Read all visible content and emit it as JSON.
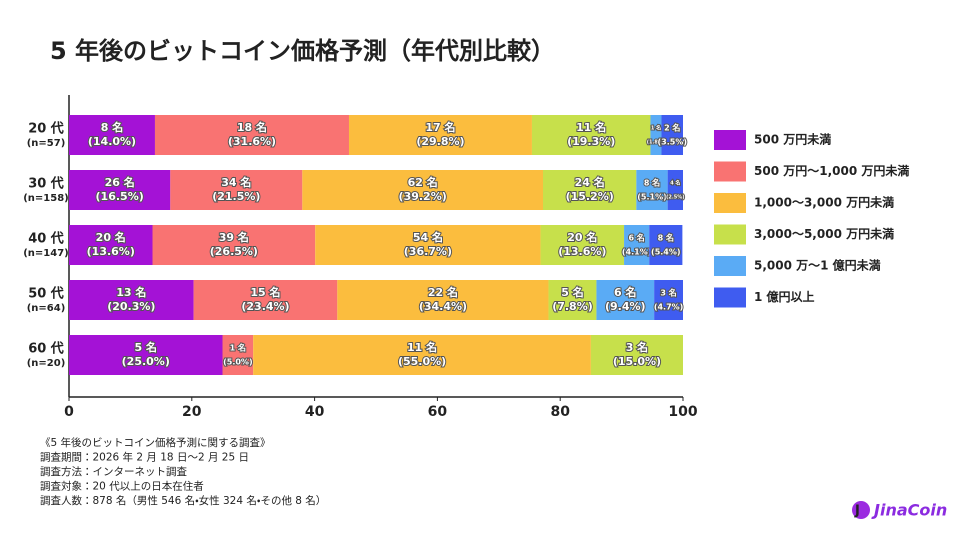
{
  "chart_data": {
    "type": "stacked-bar-horizontal",
    "title": "5 年後のビットコイン価格予測（年代別比較）",
    "categories": [
      "20 代",
      "30 代",
      "40 代",
      "50 代",
      "60 代"
    ],
    "category_notes": [
      "(n=57)",
      "(n=158)",
      "(n=147)",
      "(n=64)",
      "(n=20)"
    ],
    "xlim": [
      0,
      100
    ],
    "xticks": [
      0,
      20,
      40,
      60,
      80,
      100
    ],
    "legend": "right",
    "series": [
      {
        "name": "500 万円未満",
        "color": "#a412d6",
        "values": [
          14.0,
          16.5,
          13.6,
          20.3,
          25.0
        ],
        "value_labels": [
          "(14.0%)",
          "(16.5%)",
          "(13.6%)",
          "(20.3%)",
          "(25.0%)"
        ],
        "count_labels": [
          "8 名",
          "26 名",
          "20 名",
          "13 名",
          "5 名"
        ]
      },
      {
        "name": "500 万円〜1,000 万円未満",
        "color": "#f97372",
        "values": [
          31.6,
          21.5,
          26.5,
          23.4,
          5.0
        ],
        "value_labels": [
          "(31.6%)",
          "(21.5%)",
          "(26.5%)",
          "(23.4%)",
          "(5.0%)"
        ],
        "count_labels": [
          "18 名",
          "34 名",
          "39 名",
          "15 名",
          "1 名"
        ]
      },
      {
        "name": "1,000〜3,000 万円未満",
        "color": "#fbbd3e",
        "values": [
          29.8,
          39.2,
          36.7,
          34.4,
          55.0
        ],
        "value_labels": [
          "(29.8%)",
          "(39.2%)",
          "(36.7%)",
          "(34.4%)",
          "(55.0%)"
        ],
        "count_labels": [
          "17 名",
          "62 名",
          "54 名",
          "22 名",
          "11 名"
        ]
      },
      {
        "name": "3,000〜5,000 万円未満",
        "color": "#c7e04b",
        "values": [
          19.3,
          15.2,
          13.6,
          7.8,
          15.0
        ],
        "value_labels": [
          "(19.3%)",
          "(15.2%)",
          "(13.6%)",
          "(7.8%)",
          "(15.0%)"
        ],
        "count_labels": [
          "11 名",
          "24 名",
          "20 名",
          "5 名",
          "3 名"
        ]
      },
      {
        "name": "5,000 万〜1 億円未満",
        "color": "#5aabf5",
        "values": [
          1.8,
          5.1,
          4.1,
          9.4,
          null
        ],
        "value_labels": [
          "(1.8%)",
          "(5.1%)",
          "(4.1%)",
          "(9.4%)",
          null
        ],
        "count_labels": [
          "1 名",
          "8 名",
          "6 名",
          "6 名",
          null
        ]
      },
      {
        "name": "1 億円以上",
        "color": "#3f5cf0",
        "values": [
          3.5,
          2.5,
          5.4,
          4.7,
          null
        ],
        "value_labels": [
          "(3.5%)",
          "(2.5%)",
          "(5.4%)",
          "(4.7%)",
          null
        ],
        "count_labels": [
          "2 名",
          "4 名",
          "8 名",
          "3 名",
          null
        ]
      }
    ],
    "notes": [
      "《5 年後のビットコイン価格予測に関する調査》",
      "調査期間：2026 年 2 月 18 日〜2 月 25 日",
      "調査方法：インターネット調査",
      "調査対象：20 代以上の日本在住者",
      "調査人数：878 名（男性 546 名・女性 324 名・その他 8 名）"
    ],
    "brand": "JinaCoin"
  }
}
